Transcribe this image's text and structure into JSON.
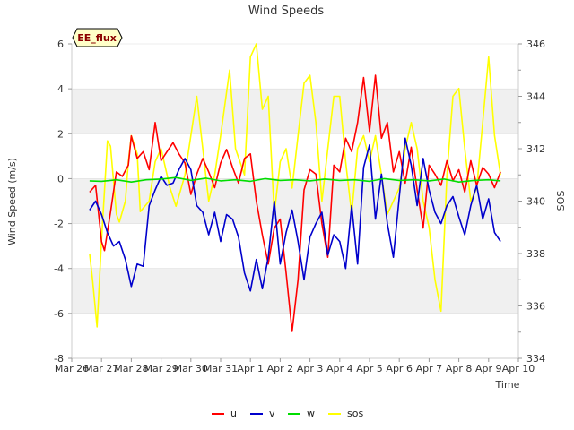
{
  "chart_data": {
    "type": "line",
    "title": "Wind Speeds",
    "badge": "EE_flux",
    "xlabel": "Time",
    "ylabel": "Wind Speed (m/s)",
    "y2label": "SOS",
    "x_tick_labels": [
      "Mar 26",
      "Mar 27",
      "Mar 28",
      "Mar 29",
      "Mar 30",
      "Mar 31",
      "Apr 1",
      "Apr 2",
      "Apr 3",
      "Apr 4",
      "Apr 5",
      "Apr 6",
      "Apr 7",
      "Apr 8",
      "Apr 9",
      "Apr 10"
    ],
    "x_range": [
      0,
      15
    ],
    "ylim": [
      -8,
      6
    ],
    "y_ticks": [
      -8,
      -6,
      -4,
      -2,
      0,
      2,
      4,
      6
    ],
    "y2lim": [
      334,
      346
    ],
    "y2_ticks": [
      334,
      336,
      338,
      340,
      342,
      344,
      346
    ],
    "grid_bands": true,
    "legend_position": "bottom-center",
    "colors": {
      "u": "#ff0000",
      "v": "#0000cc",
      "w": "#00dd00",
      "sos": "#ffff00",
      "band": "#f0f0f0",
      "gridline": "#dddddd"
    },
    "series": [
      {
        "name": "u",
        "axis": "left",
        "color": "#ff0000",
        "x": [
          0.6,
          0.8,
          1.0,
          1.1,
          1.3,
          1.5,
          1.7,
          1.9,
          2.0,
          2.2,
          2.4,
          2.6,
          2.8,
          3.0,
          3.2,
          3.4,
          3.6,
          3.8,
          4.0,
          4.2,
          4.4,
          4.6,
          4.8,
          5.0,
          5.2,
          5.4,
          5.6,
          5.8,
          6.0,
          6.2,
          6.4,
          6.6,
          6.8,
          7.0,
          7.2,
          7.4,
          7.6,
          7.8,
          8.0,
          8.2,
          8.4,
          8.6,
          8.8,
          9.0,
          9.2,
          9.4,
          9.6,
          9.8,
          10.0,
          10.2,
          10.4,
          10.6,
          10.8,
          11.0,
          11.2,
          11.4,
          11.6,
          11.8,
          12.0,
          12.2,
          12.4,
          12.6,
          12.8,
          13.0,
          13.2,
          13.4,
          13.6,
          13.8,
          14.0,
          14.2,
          14.4
        ],
        "values": [
          -0.6,
          -0.3,
          -2.8,
          -3.2,
          -1.5,
          0.3,
          0.1,
          0.6,
          1.9,
          0.9,
          1.2,
          0.4,
          2.5,
          0.8,
          1.2,
          1.6,
          1.1,
          0.7,
          -0.7,
          0.2,
          0.9,
          0.3,
          -0.4,
          0.7,
          1.3,
          0.5,
          -0.2,
          0.9,
          1.1,
          -1.0,
          -2.5,
          -3.8,
          -2.2,
          -1.8,
          -4.2,
          -6.8,
          -4.5,
          -0.5,
          0.4,
          0.2,
          -2.0,
          -3.5,
          0.6,
          0.3,
          1.8,
          1.2,
          2.5,
          4.5,
          2.1,
          4.6,
          1.8,
          2.5,
          0.3,
          1.2,
          -0.2,
          1.4,
          -0.5,
          -2.2,
          0.6,
          0.2,
          -0.3,
          0.8,
          -0.1,
          0.4,
          -0.6,
          0.8,
          -0.3,
          0.5,
          0.2,
          -0.4,
          0.3
        ]
      },
      {
        "name": "v",
        "axis": "left",
        "color": "#0000cc",
        "x": [
          0.6,
          0.8,
          1.0,
          1.2,
          1.4,
          1.6,
          1.8,
          2.0,
          2.2,
          2.4,
          2.6,
          2.8,
          3.0,
          3.2,
          3.4,
          3.6,
          3.8,
          4.0,
          4.2,
          4.4,
          4.6,
          4.8,
          5.0,
          5.2,
          5.4,
          5.6,
          5.8,
          6.0,
          6.2,
          6.4,
          6.6,
          6.8,
          7.0,
          7.2,
          7.4,
          7.6,
          7.8,
          8.0,
          8.2,
          8.4,
          8.6,
          8.8,
          9.0,
          9.2,
          9.4,
          9.6,
          9.8,
          10.0,
          10.2,
          10.4,
          10.6,
          10.8,
          11.0,
          11.2,
          11.4,
          11.6,
          11.8,
          12.0,
          12.2,
          12.4,
          12.6,
          12.8,
          13.0,
          13.2,
          13.4,
          13.6,
          13.8,
          14.0,
          14.2,
          14.4
        ],
        "values": [
          -1.4,
          -1.0,
          -1.6,
          -2.4,
          -3.0,
          -2.8,
          -3.6,
          -4.8,
          -3.8,
          -3.9,
          -1.2,
          -0.5,
          0.1,
          -0.3,
          -0.2,
          0.4,
          0.9,
          0.4,
          -1.2,
          -1.5,
          -2.5,
          -1.5,
          -2.8,
          -1.6,
          -1.8,
          -2.6,
          -4.2,
          -5.0,
          -3.6,
          -4.9,
          -3.5,
          -1.0,
          -3.8,
          -2.4,
          -1.4,
          -2.8,
          -4.5,
          -2.6,
          -2.0,
          -1.5,
          -3.4,
          -2.5,
          -2.8,
          -4.0,
          -1.2,
          -3.8,
          0.5,
          1.5,
          -1.8,
          0.2,
          -2.0,
          -3.5,
          -0.8,
          1.8,
          0.6,
          -1.2,
          0.9,
          -0.5,
          -1.5,
          -2.0,
          -1.2,
          -0.8,
          -1.7,
          -2.5,
          -1.2,
          -0.3,
          -1.8,
          -0.9,
          -2.4,
          -2.8
        ]
      },
      {
        "name": "w",
        "axis": "left",
        "color": "#00dd00",
        "x": [
          0.6,
          1.0,
          1.5,
          2.0,
          2.5,
          3.0,
          3.5,
          4.0,
          4.5,
          5.0,
          5.5,
          6.0,
          6.5,
          7.0,
          7.5,
          8.0,
          8.5,
          9.0,
          9.5,
          10.0,
          10.5,
          11.0,
          11.5,
          12.0,
          12.5,
          13.0,
          13.5,
          14.0,
          14.4
        ],
        "values": [
          -0.1,
          -0.12,
          -0.05,
          -0.15,
          -0.05,
          -0.02,
          0.05,
          -0.08,
          0.02,
          -0.1,
          -0.05,
          -0.12,
          0.0,
          -0.08,
          -0.05,
          -0.1,
          -0.02,
          -0.08,
          -0.05,
          -0.12,
          0.0,
          -0.08,
          -0.05,
          -0.1,
          -0.02,
          -0.15,
          -0.08,
          -0.05,
          -0.1
        ]
      },
      {
        "name": "sos",
        "axis": "right",
        "color": "#ffff00",
        "x": [
          0.6,
          0.7,
          0.85,
          1.0,
          1.2,
          1.3,
          1.5,
          1.6,
          1.8,
          1.9,
          2.0,
          2.2,
          2.3,
          2.6,
          2.8,
          3.0,
          3.3,
          3.5,
          3.8,
          4.0,
          4.2,
          4.4,
          4.6,
          4.8,
          5.0,
          5.3,
          5.5,
          5.8,
          6.0,
          6.2,
          6.4,
          6.6,
          6.8,
          7.0,
          7.2,
          7.4,
          7.6,
          7.8,
          8.0,
          8.2,
          8.4,
          8.6,
          8.8,
          9.0,
          9.2,
          9.4,
          9.6,
          9.8,
          10.0,
          10.2,
          10.4,
          10.6,
          10.8,
          11.0,
          11.2,
          11.4,
          11.6,
          11.8,
          12.0,
          12.2,
          12.4,
          12.6,
          12.8,
          13.0,
          13.2,
          13.4,
          13.6,
          13.8,
          14.0,
          14.2,
          14.4
        ],
        "values": [
          338.0,
          337.0,
          335.2,
          338.5,
          342.3,
          342.1,
          339.5,
          339.2,
          340.0,
          341.5,
          342.5,
          341.8,
          339.6,
          340.0,
          341.5,
          342.0,
          340.5,
          339.8,
          341.0,
          342.5,
          344.0,
          342.0,
          340.0,
          341.0,
          342.5,
          345.0,
          342.0,
          341.0,
          345.5,
          346.0,
          343.5,
          344.0,
          339.5,
          341.5,
          342.0,
          340.5,
          342.5,
          344.5,
          344.8,
          343.0,
          340.0,
          342.0,
          344.0,
          344.0,
          341.5,
          339.5,
          342.0,
          342.5,
          341.5,
          342.5,
          341.0,
          339.5,
          340.0,
          340.5,
          342.0,
          343.0,
          342.0,
          340.0,
          339.0,
          337.0,
          335.8,
          341.0,
          344.0,
          344.3,
          342.0,
          340.0,
          340.5,
          343.0,
          345.5,
          342.5,
          341.0
        ]
      }
    ]
  }
}
